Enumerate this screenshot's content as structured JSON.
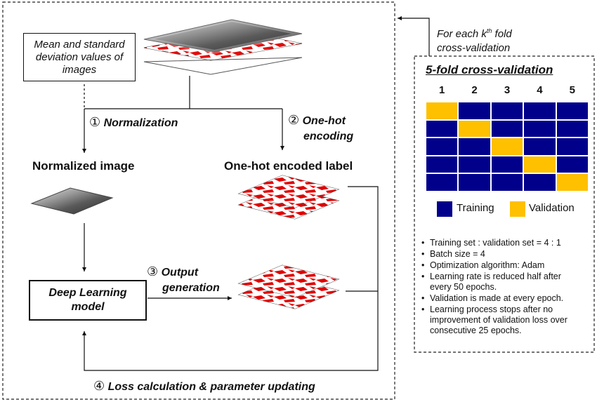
{
  "mean_std_box": {
    "line1": "Mean and standard",
    "line2": "deviation values of",
    "line3": "images"
  },
  "steps": {
    "normalization": {
      "num": "①",
      "label": "Normalization"
    },
    "onehot": {
      "num": "②",
      "label_line1": "One-hot",
      "label_line2": "encoding"
    },
    "output": {
      "num": "③",
      "label_line1": "Output",
      "label_line2": "generation"
    },
    "loss": {
      "num": "④",
      "label": "Loss calculation & parameter updating"
    }
  },
  "normalized_image_label": "Normalized image",
  "onehot_label": "One-hot encoded label",
  "dl_model": {
    "line1": "Deep Learning",
    "line2": "model"
  },
  "fold_note": {
    "line1_prefix": "For each k",
    "line1_sup": "th",
    "line1_suffix": " fold",
    "line2": "cross-validation"
  },
  "cv_panel": {
    "title": "5-fold cross-validation",
    "fold_headers": [
      "1",
      "2",
      "3",
      "4",
      "5"
    ],
    "grid": [
      [
        "V",
        "T",
        "T",
        "T",
        "T"
      ],
      [
        "T",
        "V",
        "T",
        "T",
        "T"
      ],
      [
        "T",
        "T",
        "V",
        "T",
        "T"
      ],
      [
        "T",
        "T",
        "T",
        "V",
        "T"
      ],
      [
        "T",
        "T",
        "T",
        "T",
        "V"
      ]
    ],
    "legend": {
      "training": "Training",
      "validation": "Validation"
    },
    "colors": {
      "training": "#00008b",
      "validation": "#ffc000"
    },
    "bullets": [
      [
        "Training set : validation set = 4 : 1"
      ],
      [
        "Batch size = 4"
      ],
      [
        "Optimization algorithm: Adam"
      ],
      [
        "Learning rate is reduced half after",
        "every 50 epochs."
      ],
      [
        "Validation is made at every epoch."
      ],
      [
        "Learning process stops after no",
        "improvement of validation loss over",
        "consecutive 25 epochs."
      ]
    ]
  }
}
